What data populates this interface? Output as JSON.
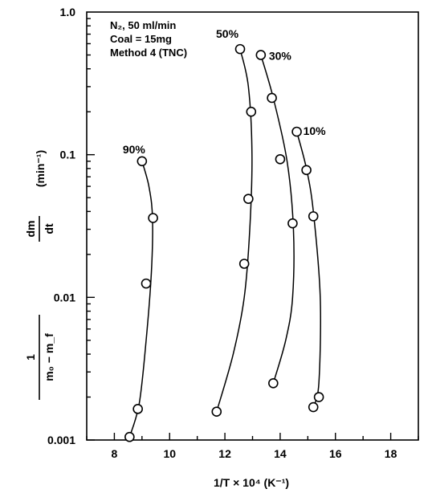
{
  "chart_data": {
    "type": "scatter",
    "x_label": "1/T × 10⁴ (K⁻¹)",
    "y_label": {
      "frac_numerator": "1",
      "frac_denominator": "m₀ − m_f",
      "deriv_numerator": "dm",
      "deriv_denominator": "dt",
      "unit": "(min⁻¹)"
    },
    "x_scale": "linear",
    "y_scale": "log",
    "x_lim": [
      7,
      19
    ],
    "y_lim": [
      0.001,
      1.0
    ],
    "x_ticks": [
      8,
      10,
      12,
      14,
      16,
      18
    ],
    "y_ticks": [
      0.001,
      0.01,
      0.1,
      1.0
    ],
    "y_tick_labels": [
      "0.001",
      "0.01",
      "0.1",
      "1.0"
    ],
    "grid": false,
    "legend_lines": [
      "N₂, 50 ml/min",
      "Coal = 15mg",
      "Method 4 (TNC)"
    ],
    "legend_placement": "top-left",
    "series": [
      {
        "name": "90%",
        "points": [
          [
            9.0,
            0.09
          ],
          [
            9.4,
            0.036
          ],
          [
            9.15,
            0.0125
          ],
          [
            8.85,
            0.00165
          ],
          [
            8.55,
            0.00105
          ]
        ],
        "curve": [
          [
            9.0,
            0.09
          ],
          [
            9.25,
            0.06
          ],
          [
            9.38,
            0.036
          ],
          [
            9.34,
            0.015
          ],
          [
            9.15,
            0.005
          ],
          [
            8.9,
            0.0018
          ],
          [
            8.55,
            0.00105
          ]
        ]
      },
      {
        "name": "50%",
        "points": [
          [
            12.55,
            0.55
          ],
          [
            12.95,
            0.2
          ],
          [
            12.85,
            0.049
          ],
          [
            12.7,
            0.0172
          ],
          [
            11.7,
            0.00158
          ]
        ],
        "curve": [
          [
            12.55,
            0.55
          ],
          [
            12.85,
            0.3
          ],
          [
            12.98,
            0.1
          ],
          [
            12.9,
            0.03
          ],
          [
            12.7,
            0.01
          ],
          [
            12.3,
            0.004
          ],
          [
            11.7,
            0.00158
          ]
        ]
      },
      {
        "name": "30%",
        "points": [
          [
            13.3,
            0.5
          ],
          [
            13.7,
            0.25
          ],
          [
            14.0,
            0.093
          ],
          [
            14.45,
            0.033
          ],
          [
            13.75,
            0.0025
          ]
        ],
        "curve": [
          [
            13.3,
            0.5
          ],
          [
            13.75,
            0.25
          ],
          [
            14.25,
            0.09
          ],
          [
            14.48,
            0.03
          ],
          [
            14.45,
            0.01
          ],
          [
            14.2,
            0.005
          ],
          [
            13.75,
            0.0025
          ]
        ]
      },
      {
        "name": "10%",
        "points": [
          [
            14.6,
            0.145
          ],
          [
            14.95,
            0.078
          ],
          [
            15.2,
            0.037
          ],
          [
            15.4,
            0.002
          ],
          [
            15.2,
            0.0017
          ]
        ],
        "curve": [
          [
            14.6,
            0.145
          ],
          [
            14.95,
            0.08
          ],
          [
            15.2,
            0.04
          ],
          [
            15.45,
            0.01
          ],
          [
            15.4,
            0.0025
          ],
          [
            15.2,
            0.0017
          ]
        ]
      }
    ]
  }
}
